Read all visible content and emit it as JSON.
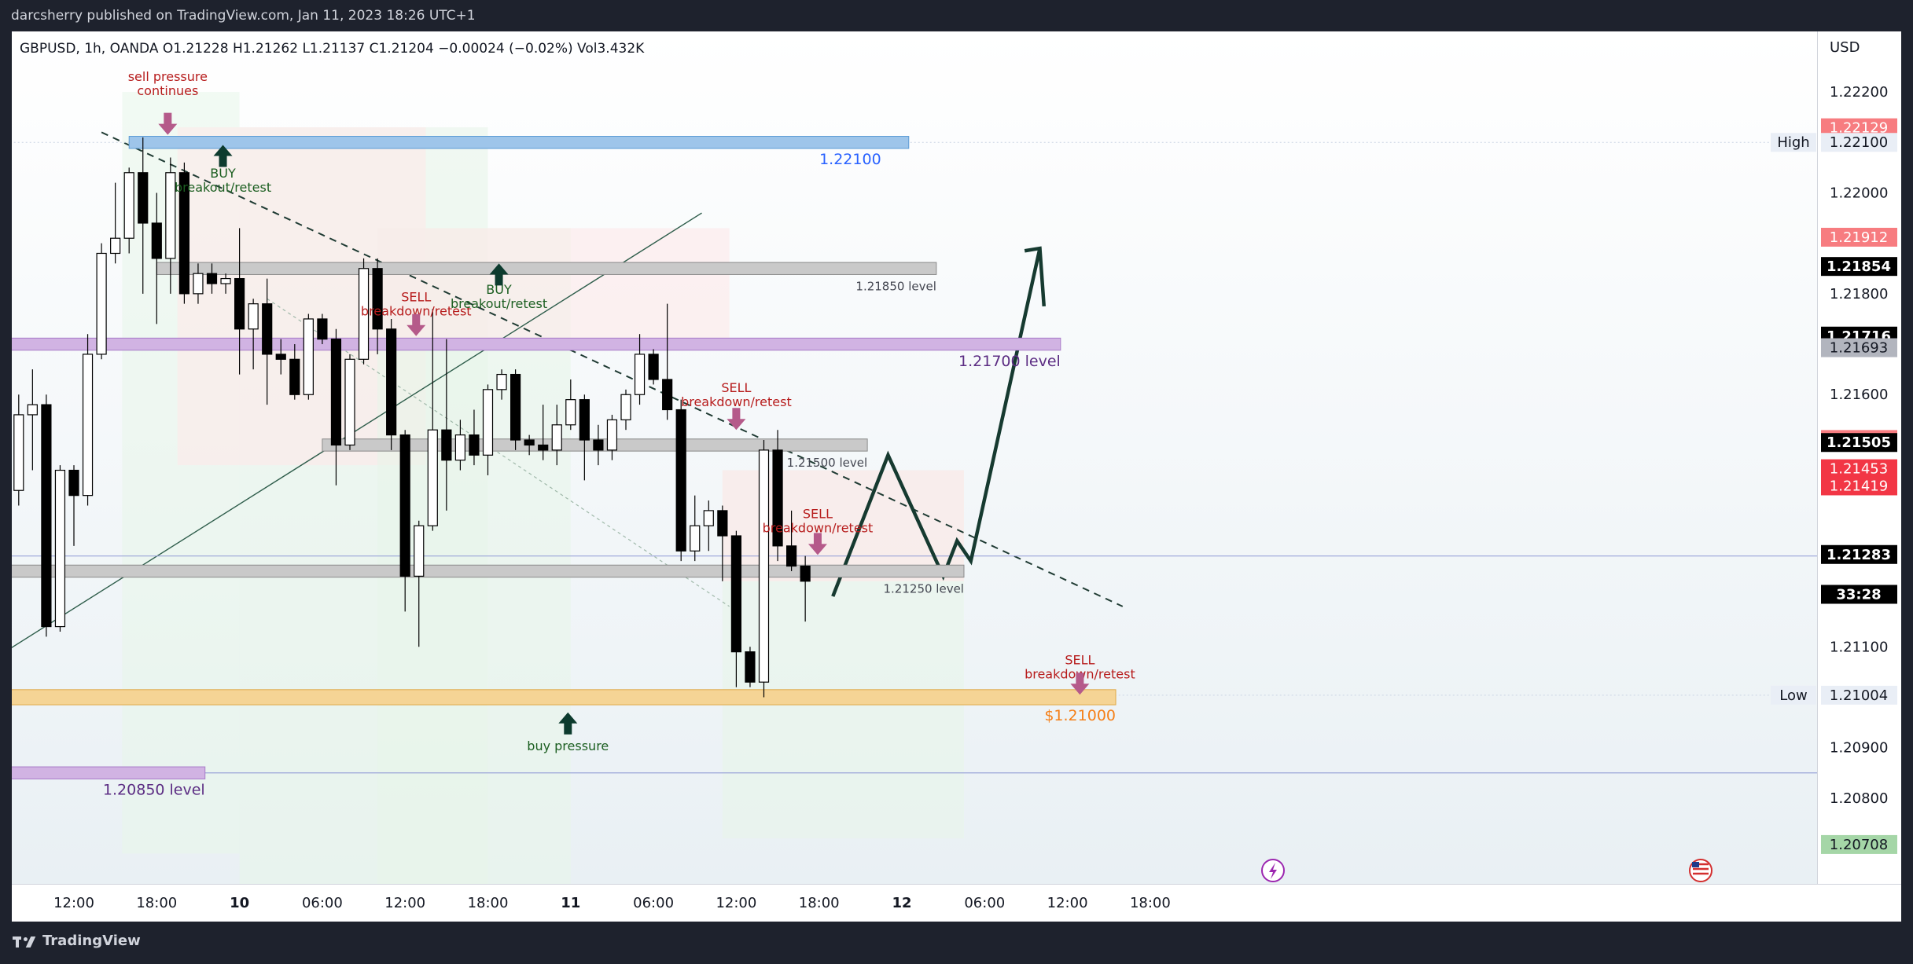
{
  "header": {
    "publisher_line": "darcsherry published on TradingView.com, Jan 11, 2023 18:26 UTC+1"
  },
  "footer": {
    "brand": "TradingView"
  },
  "chart_data": {
    "type": "candlestick",
    "symbol": "GBPUSD",
    "interval": "1h",
    "broker": "OANDA",
    "ohlc_legend": "GBPUSD, 1h, OANDA  O1.21228  H1.21262  L1.21137  C1.21204  −0.00024 (−0.02%)  Vol3.432K",
    "currency_label": "USD",
    "ylim": [
      1.2063,
      1.2232
    ],
    "y_ticks": [
      {
        "label": "1.22200",
        "value": 1.222
      },
      {
        "label": "1.22000",
        "value": 1.22
      },
      {
        "label": "1.21800",
        "value": 1.218
      },
      {
        "label": "1.21600",
        "value": 1.216
      },
      {
        "label": "1.21100",
        "value": 1.211
      },
      {
        "label": "1.20900",
        "value": 1.209
      },
      {
        "label": "1.20800",
        "value": 1.208
      }
    ],
    "x_ticks": [
      {
        "label": "12:00",
        "index": 0
      },
      {
        "label": "18:00",
        "index": 6
      },
      {
        "label": "10",
        "index": 12
      },
      {
        "label": "06:00",
        "index": 18
      },
      {
        "label": "12:00",
        "index": 24
      },
      {
        "label": "18:00",
        "index": 30
      },
      {
        "label": "11",
        "index": 36
      },
      {
        "label": "06:00",
        "index": 42
      },
      {
        "label": "12:00",
        "index": 48
      },
      {
        "label": "18:00",
        "index": 54
      },
      {
        "label": "12",
        "index": 60
      },
      {
        "label": "06:00",
        "index": 66
      },
      {
        "label": "12:00",
        "index": 72
      },
      {
        "label": "18:00",
        "index": 78
      }
    ],
    "price_tags": [
      {
        "label": "1.22129",
        "value": 1.22129,
        "color": "#f77c80",
        "text_color": "#ffffff"
      },
      {
        "label": "1.22100",
        "value": 1.221,
        "color": "#e9eef6",
        "text_color": "#131722",
        "side_label": "High"
      },
      {
        "label": "1.21912",
        "value": 1.21912,
        "color": "#f77c80",
        "text_color": "#ffffff"
      },
      {
        "label": "1.21854",
        "value": 1.21854,
        "color": "#000000",
        "text_color": "#ffffff"
      },
      {
        "label": "1.21716",
        "value": 1.21716,
        "color": "#000000",
        "text_color": "#ffffff"
      },
      {
        "label": "1.21693",
        "value": 1.21693,
        "color": "#b2b5be",
        "text_color": "#131722"
      },
      {
        "label": "1.21511",
        "value": 1.21511,
        "color": "#f77c80",
        "text_color": "#ffffff"
      },
      {
        "label": "1.21505",
        "value": 1.21505,
        "color": "#000000",
        "text_color": "#ffffff"
      },
      {
        "label": "1.21453",
        "value": 1.21453,
        "color": "#f23645",
        "text_color": "#ffffff"
      },
      {
        "label": "1.21419",
        "value": 1.21419,
        "color": "#f23645",
        "text_color": "#ffffff"
      },
      {
        "label": "1.21283",
        "value": 1.21283,
        "color": "#000000",
        "text_color": "#ffffff"
      },
      {
        "label": "33:28",
        "value": 1.21204,
        "color": "#000000",
        "text_color": "#ffffff"
      },
      {
        "label": "1.21004",
        "value": 1.21004,
        "color": "#e9eef6",
        "text_color": "#131722",
        "side_label": "Low"
      },
      {
        "label": "1.20708",
        "value": 1.20708,
        "color": "#a5d6a7",
        "text_color": "#131722"
      }
    ],
    "candles": [
      {
        "i": -5,
        "o": 1.2148,
        "h": 1.2153,
        "l": 1.2125,
        "c": 1.2141
      },
      {
        "i": -4,
        "o": 1.2141,
        "h": 1.216,
        "l": 1.2138,
        "c": 1.2156
      },
      {
        "i": -3,
        "o": 1.2156,
        "h": 1.2165,
        "l": 1.2145,
        "c": 1.2158
      },
      {
        "i": -2,
        "o": 1.2158,
        "h": 1.216,
        "l": 1.2112,
        "c": 1.2114
      },
      {
        "i": -1,
        "o": 1.2114,
        "h": 1.2146,
        "l": 1.2113,
        "c": 1.2145
      },
      {
        "i": 0,
        "o": 1.2145,
        "h": 1.2146,
        "l": 1.213,
        "c": 1.214
      },
      {
        "i": 1,
        "o": 1.214,
        "h": 1.2172,
        "l": 1.2138,
        "c": 1.2168
      },
      {
        "i": 2,
        "o": 1.2168,
        "h": 1.219,
        "l": 1.2167,
        "c": 1.2188
      },
      {
        "i": 3,
        "o": 1.2188,
        "h": 1.2202,
        "l": 1.2186,
        "c": 1.2191
      },
      {
        "i": 4,
        "o": 1.2191,
        "h": 1.2205,
        "l": 1.2188,
        "c": 1.2204
      },
      {
        "i": 5,
        "o": 1.2204,
        "h": 1.2211,
        "l": 1.218,
        "c": 1.2194
      },
      {
        "i": 6,
        "o": 1.2194,
        "h": 1.22,
        "l": 1.2174,
        "c": 1.2187
      },
      {
        "i": 7,
        "o": 1.2187,
        "h": 1.2207,
        "l": 1.218,
        "c": 1.2204
      },
      {
        "i": 8,
        "o": 1.2204,
        "h": 1.2206,
        "l": 1.2178,
        "c": 1.218
      },
      {
        "i": 9,
        "o": 1.218,
        "h": 1.2186,
        "l": 1.2178,
        "c": 1.2184
      },
      {
        "i": 10,
        "o": 1.2184,
        "h": 1.2186,
        "l": 1.218,
        "c": 1.2182
      },
      {
        "i": 11,
        "o": 1.2182,
        "h": 1.2184,
        "l": 1.218,
        "c": 1.2183
      },
      {
        "i": 12,
        "o": 1.2183,
        "h": 1.2193,
        "l": 1.2164,
        "c": 1.2173
      },
      {
        "i": 13,
        "o": 1.2173,
        "h": 1.2179,
        "l": 1.2165,
        "c": 1.2178
      },
      {
        "i": 14,
        "o": 1.2178,
        "h": 1.2183,
        "l": 1.2158,
        "c": 1.2168
      },
      {
        "i": 15,
        "o": 1.2168,
        "h": 1.2171,
        "l": 1.2164,
        "c": 1.2167
      },
      {
        "i": 16,
        "o": 1.2167,
        "h": 1.217,
        "l": 1.2159,
        "c": 1.216
      },
      {
        "i": 17,
        "o": 1.216,
        "h": 1.2176,
        "l": 1.2159,
        "c": 1.2175
      },
      {
        "i": 18,
        "o": 1.2175,
        "h": 1.2176,
        "l": 1.217,
        "c": 1.2171
      },
      {
        "i": 19,
        "o": 1.2171,
        "h": 1.2173,
        "l": 1.2142,
        "c": 1.215
      },
      {
        "i": 20,
        "o": 1.215,
        "h": 1.2168,
        "l": 1.2149,
        "c": 1.2167
      },
      {
        "i": 21,
        "o": 1.2167,
        "h": 1.2187,
        "l": 1.2166,
        "c": 1.2185
      },
      {
        "i": 22,
        "o": 1.2185,
        "h": 1.2187,
        "l": 1.2168,
        "c": 1.2173
      },
      {
        "i": 23,
        "o": 1.2173,
        "h": 1.2175,
        "l": 1.2149,
        "c": 1.2152
      },
      {
        "i": 24,
        "o": 1.2152,
        "h": 1.2153,
        "l": 1.2117,
        "c": 1.2124
      },
      {
        "i": 25,
        "o": 1.2124,
        "h": 1.2135,
        "l": 1.211,
        "c": 1.2134
      },
      {
        "i": 26,
        "o": 1.2134,
        "h": 1.2177,
        "l": 1.2133,
        "c": 1.2153
      },
      {
        "i": 27,
        "o": 1.2153,
        "h": 1.2171,
        "l": 1.2137,
        "c": 1.2147
      },
      {
        "i": 28,
        "o": 1.2147,
        "h": 1.2155,
        "l": 1.2145,
        "c": 1.2152
      },
      {
        "i": 29,
        "o": 1.2152,
        "h": 1.2157,
        "l": 1.2146,
        "c": 1.2148
      },
      {
        "i": 30,
        "o": 1.2148,
        "h": 1.2162,
        "l": 1.2144,
        "c": 1.2161
      },
      {
        "i": 31,
        "o": 1.2161,
        "h": 1.2165,
        "l": 1.2159,
        "c": 1.2164
      },
      {
        "i": 32,
        "o": 1.2164,
        "h": 1.2165,
        "l": 1.2149,
        "c": 1.2151
      },
      {
        "i": 33,
        "o": 1.2151,
        "h": 1.2152,
        "l": 1.2148,
        "c": 1.215
      },
      {
        "i": 34,
        "o": 1.215,
        "h": 1.2158,
        "l": 1.2147,
        "c": 1.2149
      },
      {
        "i": 35,
        "o": 1.2149,
        "h": 1.2158,
        "l": 1.2146,
        "c": 1.2154
      },
      {
        "i": 36,
        "o": 1.2154,
        "h": 1.2163,
        "l": 1.2153,
        "c": 1.2159
      },
      {
        "i": 37,
        "o": 1.2159,
        "h": 1.216,
        "l": 1.2143,
        "c": 1.2151
      },
      {
        "i": 38,
        "o": 1.2151,
        "h": 1.2154,
        "l": 1.2146,
        "c": 1.2149
      },
      {
        "i": 39,
        "o": 1.2149,
        "h": 1.2156,
        "l": 1.2147,
        "c": 1.2155
      },
      {
        "i": 40,
        "o": 1.2155,
        "h": 1.2161,
        "l": 1.2153,
        "c": 1.216
      },
      {
        "i": 41,
        "o": 1.216,
        "h": 1.2172,
        "l": 1.2158,
        "c": 1.2168
      },
      {
        "i": 42,
        "o": 1.2168,
        "h": 1.2169,
        "l": 1.2162,
        "c": 1.2163
      },
      {
        "i": 43,
        "o": 1.2163,
        "h": 1.2178,
        "l": 1.2155,
        "c": 1.2157
      },
      {
        "i": 44,
        "o": 1.2157,
        "h": 1.2159,
        "l": 1.2127,
        "c": 1.2129
      },
      {
        "i": 45,
        "o": 1.2129,
        "h": 1.214,
        "l": 1.2127,
        "c": 1.2134
      },
      {
        "i": 46,
        "o": 1.2134,
        "h": 1.2139,
        "l": 1.2129,
        "c": 1.2137
      },
      {
        "i": 47,
        "o": 1.2137,
        "h": 1.2138,
        "l": 1.2123,
        "c": 1.2132
      },
      {
        "i": 48,
        "o": 1.2132,
        "h": 1.2133,
        "l": 1.2102,
        "c": 1.2109
      },
      {
        "i": 49,
        "o": 1.2109,
        "h": 1.211,
        "l": 1.2102,
        "c": 1.2103
      },
      {
        "i": 50,
        "o": 1.2103,
        "h": 1.2151,
        "l": 1.21,
        "c": 1.2149
      },
      {
        "i": 51,
        "o": 1.2149,
        "h": 1.2153,
        "l": 1.2127,
        "c": 1.213
      },
      {
        "i": 52,
        "o": 1.213,
        "h": 1.2137,
        "l": 1.2125,
        "c": 1.2126
      },
      {
        "i": 53,
        "o": 1.2126,
        "h": 1.2128,
        "l": 1.2115,
        "c": 1.2123
      }
    ],
    "zones": [
      {
        "x1": 4,
        "x2": 60.5,
        "y1": 1.22112,
        "y2": 1.22088,
        "fill": "#9ec5ea",
        "stroke": "#5b9bd5",
        "label": "1.22100",
        "label_color": "#2962ff",
        "label_x": 58.5,
        "label_anchor": "end"
      },
      {
        "x1": 6,
        "x2": 62.5,
        "y1": 1.21862,
        "y2": 1.21838,
        "fill": "#c9c9c9",
        "stroke": "#8a8a8a",
        "label": "1.21850 level",
        "label_color": "#434651",
        "label_x": 62.5,
        "label_anchor": "end"
      },
      {
        "x1": -5.2,
        "x2": 71.5,
        "y1": 1.21712,
        "y2": 1.21688,
        "fill": "#d1b3e3",
        "stroke": "#a87cc8",
        "label": "1.21700 level",
        "label_color": "#5b2c83",
        "label_x": 71.5,
        "label_anchor": "end"
      },
      {
        "x1": 18,
        "x2": 57.5,
        "y1": 1.21512,
        "y2": 1.21488,
        "fill": "#c9c9c9",
        "stroke": "#8a8a8a",
        "label": "1.21500 level",
        "label_color": "#434651",
        "label_x": 57.5,
        "label_anchor": "end"
      },
      {
        "x1": -5.2,
        "x2": 64.5,
        "y1": 1.21262,
        "y2": 1.21238,
        "fill": "#c9c9c9",
        "stroke": "#8a8a8a",
        "label": "1.21250 level",
        "label_color": "#434651",
        "label_x": 64.5,
        "label_anchor": "end"
      },
      {
        "x1": -5.2,
        "x2": 75.5,
        "y1": 1.21015,
        "y2": 1.20985,
        "fill": "#f5d495",
        "stroke": "#e0a846",
        "label": "$1.21000",
        "label_color": "#f57f17",
        "label_x": 75.5,
        "label_anchor": "end"
      },
      {
        "x1": -5.2,
        "x2": 9.5,
        "y1": 1.20862,
        "y2": 1.20838,
        "fill": "#d1b3e3",
        "stroke": "#a87cc8",
        "label": "1.20850 level",
        "label_color": "#5b2c83",
        "label_x": 9.5,
        "label_anchor": "end"
      }
    ],
    "annotations": [
      {
        "lines": [
          "sell pressure",
          "continues"
        ],
        "x": 6.8,
        "y": 1.22222,
        "color": "#b71c1c",
        "arrow": "down",
        "arrow_y": 1.22115
      },
      {
        "lines": [
          "BUY",
          "breakout/retest"
        ],
        "x": 10.8,
        "y": 1.2203,
        "color": "#1b5e20",
        "arrow": "up",
        "arrow_y": 1.22095
      },
      {
        "lines": [
          "SELL",
          "breakdown/retest"
        ],
        "x": 24.8,
        "y": 1.21785,
        "color": "#b71c1c",
        "arrow": "down",
        "arrow_y": 1.21716
      },
      {
        "lines": [
          "BUY",
          "breakout/retest"
        ],
        "x": 30.8,
        "y": 1.218,
        "color": "#1b5e20",
        "arrow": "up",
        "arrow_y": 1.2186
      },
      {
        "lines": [
          "SELL",
          "breakdown/retest"
        ],
        "x": 48.0,
        "y": 1.21605,
        "color": "#b71c1c",
        "arrow": "down",
        "arrow_y": 1.2153
      },
      {
        "lines": [
          "SELL",
          "breakdown/retest"
        ],
        "x": 53.9,
        "y": 1.21355,
        "color": "#b71c1c",
        "arrow": "down",
        "arrow_y": 1.21282
      },
      {
        "lines": [
          "SELL",
          "breakdown/retest"
        ],
        "x": 72.9,
        "y": 1.21065,
        "color": "#b71c1c",
        "arrow": "down",
        "arrow_y": 1.21005
      },
      {
        "lines": [
          "buy pressure"
        ],
        "x": 35.8,
        "y": 1.20895,
        "color": "#1b5e20",
        "arrow": "up",
        "arrow_y": 1.2097
      }
    ]
  }
}
